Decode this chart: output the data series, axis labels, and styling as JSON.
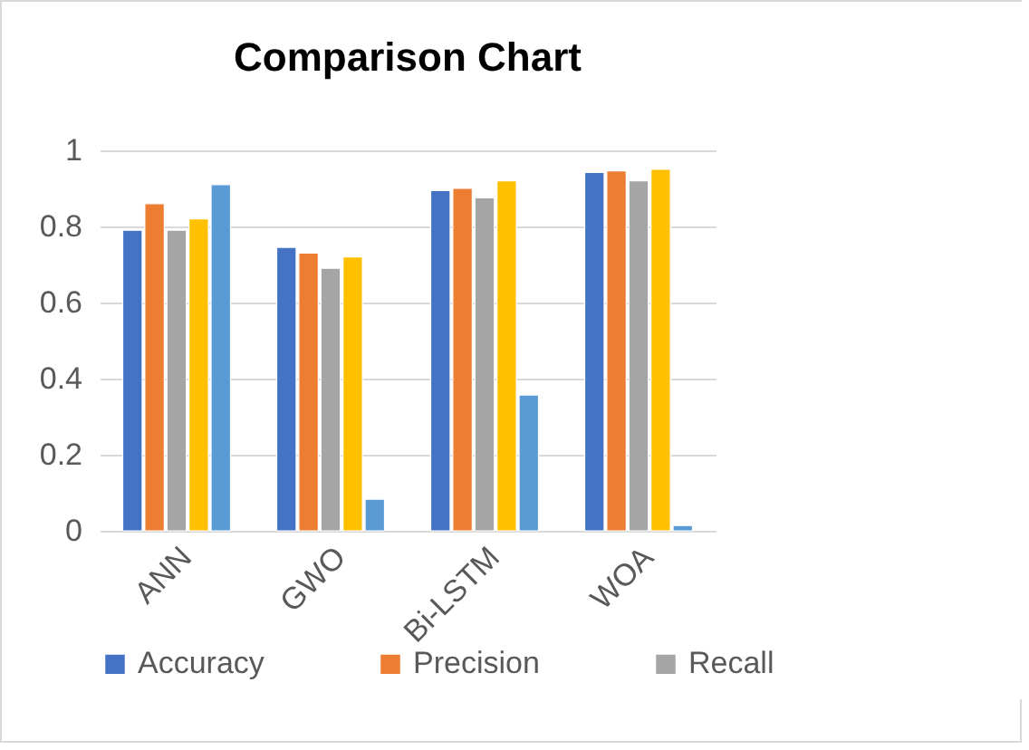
{
  "chart_data": {
    "type": "bar",
    "title": "Comparison Chart",
    "categories": [
      "ANN",
      "GWO",
      "Bi-LSTM",
      "WOA"
    ],
    "series": [
      {
        "name": "Accuracy",
        "color": "#4472c4",
        "values": [
          0.79,
          0.745,
          0.894,
          0.942
        ]
      },
      {
        "name": "Precision",
        "color": "#ed7d31",
        "values": [
          0.86,
          0.73,
          0.9,
          0.946
        ]
      },
      {
        "name": "Recall",
        "color": "#a5a5a5",
        "values": [
          0.79,
          0.69,
          0.875,
          0.92
        ]
      },
      {
        "color": "#ffc000",
        "values": [
          0.82,
          0.72,
          0.92,
          0.95
        ]
      },
      {
        "color": "#5b9bd5",
        "values": [
          0.91,
          0.083,
          0.357,
          0.014
        ]
      }
    ],
    "ylim": [
      0,
      1
    ],
    "yticks": [
      0,
      0.2,
      0.4,
      0.6,
      0.8,
      1
    ],
    "grid": "y",
    "legend": "bottom"
  }
}
